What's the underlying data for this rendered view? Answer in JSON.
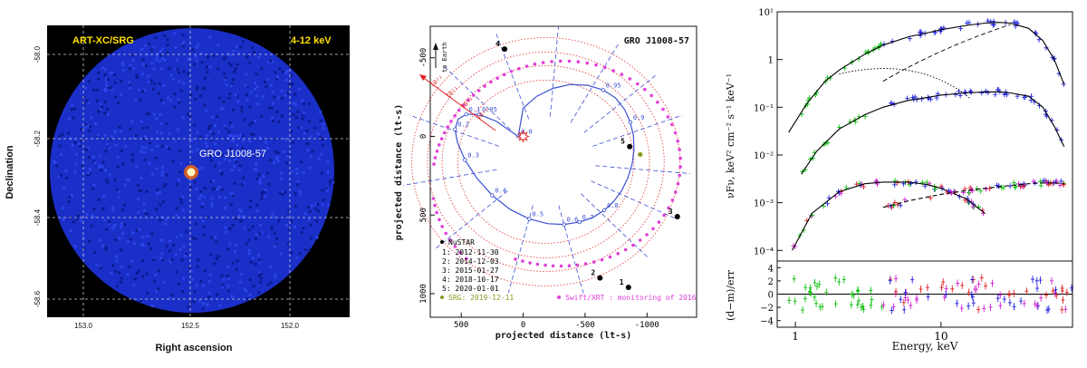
{
  "chart_data": [
    {
      "type": "heatmap",
      "title": "ART-XC/SRG",
      "band": "4-12 keV",
      "xlabel": "Right ascension",
      "ylabel": "Declination",
      "xticks": [
        "153.0",
        "152.5",
        "152.0"
      ],
      "yticks": [
        "-58.0",
        "-58.2",
        "-58.4",
        "-58.6"
      ],
      "source_label": "GRO J1008-57",
      "colors": {
        "field": "#1a2fc8",
        "background": "#000000",
        "source": "#fff6c0",
        "label": "#ffe000"
      }
    },
    {
      "type": "scatter",
      "title": "GRO J1008-57",
      "xlabel": "projected distance (lt-s)",
      "ylabel": "projected distance (lt-s)",
      "xticks": [
        "500",
        "0",
        "-500",
        "-1000"
      ],
      "yticks": [
        "-500",
        "0",
        "500",
        "1000"
      ],
      "xlim": [
        750,
        -1400
      ],
      "ylim": [
        -700,
        1150
      ],
      "earth_label": "to Earth",
      "density_labels": [
        "10²²",
        "10²¹",
        "10²⁰",
        "10¹⁹"
      ],
      "phase_labels": [
        "0.0",
        "0.05",
        "0.1",
        "0.2",
        "0.3",
        "0.4",
        "0.5",
        "0.6",
        "0.7",
        "0.8",
        "0.9",
        "0.95"
      ],
      "orbit": {
        "x": [
          40,
          215,
          355,
          460,
          525,
          550,
          530,
          470,
          375,
          250,
          105,
          -50,
          -200,
          -330,
          -455,
          -565,
          -655,
          -730,
          -795,
          -845,
          -880,
          -895,
          -890,
          -865,
          -820,
          -745,
          -645,
          -520,
          -380,
          -240,
          -110,
          0,
          40
        ],
        "y": [
          0,
          -95,
          -140,
          -140,
          -110,
          -45,
          40,
          150,
          265,
          375,
          465,
          525,
          555,
          560,
          545,
          515,
          470,
          415,
          345,
          265,
          175,
          85,
          -5,
          -90,
          -170,
          -245,
          -295,
          -325,
          -330,
          -305,
          -255,
          -180,
          0
        ]
      },
      "swift_label": "Swift/XRT : monitoring of 2016",
      "src_label": "SRG: 2019-12-11",
      "nustar_label": "NuSTAR",
      "nustar_obs": [
        {
          "id": "1",
          "date": "2012-11-30",
          "x": -850,
          "y": 960
        },
        {
          "id": "2",
          "date": "2014-12-03",
          "x": -620,
          "y": 900
        },
        {
          "id": "3",
          "date": "2015-01-27",
          "x": -1245,
          "y": 510
        },
        {
          "id": "4",
          "date": "2018-10-17",
          "x": 150,
          "y": -555
        },
        {
          "id": "5",
          "date": "2020-01-01",
          "x": -860,
          "y": 65
        }
      ],
      "src_point": {
        "x": -945,
        "y": 115
      },
      "colors": {
        "orbit": "#3b4fd0",
        "rings": "#e64646",
        "swift": "#e040d8",
        "src": "#8a9a20",
        "nustar": "#000000",
        "arrow": "#e02020"
      }
    },
    {
      "type": "line",
      "xlabel": "Energy, keV",
      "ylabel": "νFν, keV² cm⁻² s⁻¹ keV⁻¹",
      "ylabel_lower": "(d−m)/err",
      "xticks": [
        "1",
        "10"
      ],
      "yticks": [
        "10⁻⁴",
        "10⁻³",
        "10⁻²",
        "10⁻¹",
        "1",
        "10¹"
      ],
      "yticks_lower": [
        "4",
        "2",
        "0",
        "−2",
        "−4"
      ],
      "xlim": [
        0.75,
        80
      ],
      "ylim": [
        6e-05,
        10
      ],
      "ylim_lower": [
        -5,
        5
      ],
      "series": [
        {
          "x": [
            0.9,
            1.2,
            1.6,
            2,
            3,
            4,
            6,
            8,
            10,
            15,
            20,
            25,
            30,
            40,
            50,
            60,
            70
          ],
          "y": [
            0.03,
            0.12,
            0.35,
            0.6,
            1.3,
            2.0,
            3.0,
            3.6,
            4.2,
            5.2,
            5.8,
            6.0,
            5.8,
            4.5,
            2.5,
            1.0,
            0.3
          ]
        },
        {
          "x": [
            1.1,
            1.4,
            2,
            3,
            4,
            6,
            8,
            10,
            15,
            20,
            25,
            30,
            40,
            50,
            60,
            70
          ],
          "y": [
            0.004,
            0.012,
            0.035,
            0.07,
            0.1,
            0.14,
            0.16,
            0.18,
            0.2,
            0.21,
            0.21,
            0.2,
            0.17,
            0.1,
            0.04,
            0.015
          ]
        },
        {
          "x": [
            0.95,
            1.3,
            2,
            3,
            4,
            6,
            8,
            10,
            15,
            20
          ],
          "y": [
            0.0001,
            0.0006,
            0.0017,
            0.0025,
            0.0027,
            0.0027,
            0.0024,
            0.002,
            0.0012,
            0.0006
          ]
        },
        {
          "x": [
            4,
            6,
            10,
            15,
            20,
            30,
            40,
            50,
            60,
            70
          ],
          "y": [
            0.0008,
            0.0011,
            0.0015,
            0.0018,
            0.002,
            0.0023,
            0.0025,
            0.0026,
            0.0026,
            0.0025
          ]
        }
      ],
      "colors": {
        "model": "#000000",
        "green": "#10c010",
        "blue": "#2020e0",
        "red": "#e02020",
        "magenta": "#d020d0"
      }
    }
  ]
}
